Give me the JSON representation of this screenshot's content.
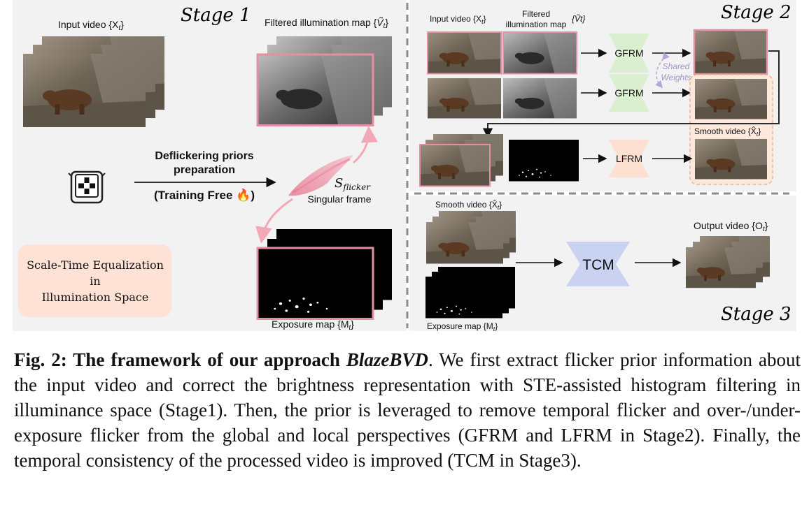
{
  "stage1": {
    "title": "Stage 1",
    "input_label": "Input video {X",
    "input_sub": "t",
    "filtered_label": "Filtered illumination map {",
    "filtered_sym": "Ṽ",
    "filtered_sub": "t",
    "priors_line1": "Deflickering priors",
    "priors_line2": "preparation",
    "training_free": "(Training Free 🔥)",
    "sflicker_sym": "S",
    "sflicker_sub": "flicker",
    "singular_frame": "Singular frame",
    "exposure_label": "Exposure map {M",
    "exposure_sub": "t",
    "ste_line1": "Scale-Time Equalization",
    "ste_line2": "in",
    "ste_line3": "Illumination Space"
  },
  "stage2": {
    "title": "Stage 2",
    "input_label": "Input video {X",
    "input_sub": "t",
    "filtered_line1": "Filtered",
    "filtered_line2": "illumination map",
    "filtered_sym": "{Ṽt}",
    "gfrm": "GFRM",
    "lfrm": "LFRM",
    "shared_line1": "Shared",
    "shared_line2": "Weights",
    "smooth_label": "Smooth video {X̂",
    "smooth_sub": "t"
  },
  "stage3": {
    "title": "Stage 3",
    "smooth_label": "Smooth video {X̂",
    "smooth_sub": "t",
    "tcm": "TCM",
    "output_label": "Output video {O",
    "output_sub": "t",
    "exposure_label": "Exposure map {M",
    "exposure_sub": "t"
  },
  "caption": {
    "fig_label": "Fig. 2: The framework of our approach ",
    "method_name": "BlazeBVD",
    "text": ". We first extract flicker prior information about the input video and correct the brightness representation with STE-assisted histogram filtering in illuminance space (Stage1). Then, the prior is leveraged to remove temporal flicker and over-/under-exposure flicker from the global and local perspectives (GFRM and LFRM in Stage2). Finally, the temporal consistency of the processed video is improved (TCM in Stage3)."
  },
  "colors": {
    "pink_border": "#e58fa3",
    "gfrm_fill": "#d9efcf",
    "lfrm_fill": "#fde0d2",
    "tcm_fill": "#c9d2f1",
    "ste_fill": "#fde2d5",
    "bg_panel": "#f2f2f2"
  }
}
